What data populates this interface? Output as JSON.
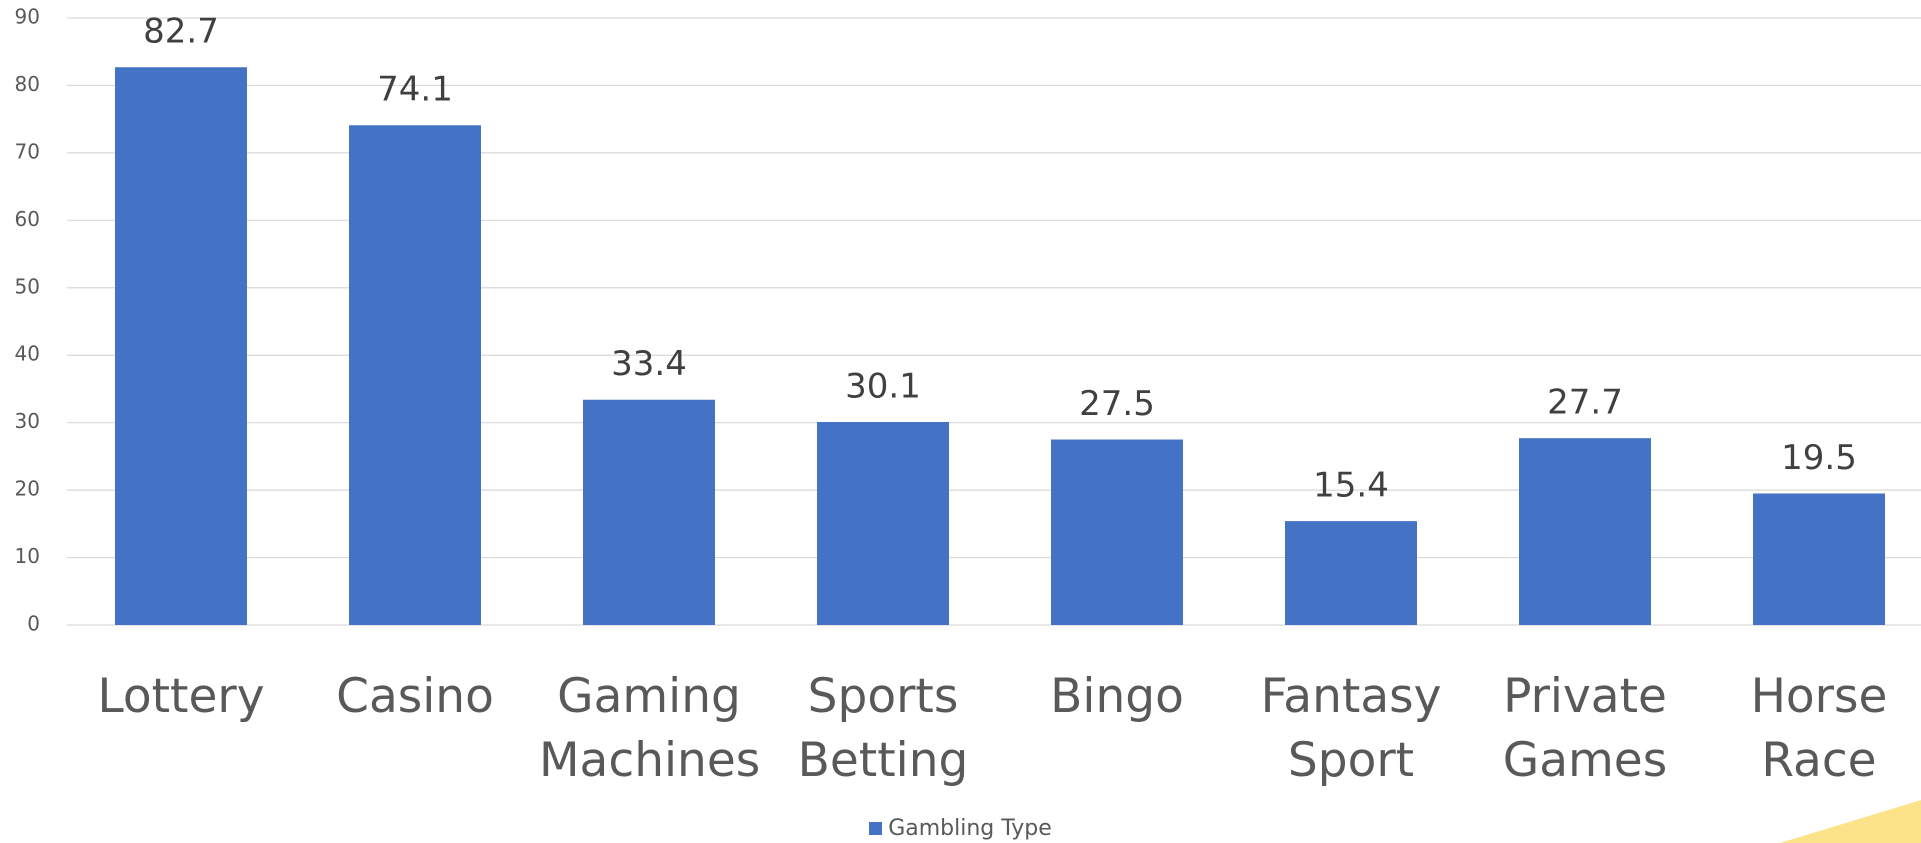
{
  "chart_data": {
    "type": "bar",
    "categories": [
      "Lottery",
      "Casino",
      "Gaming Machines",
      "Sports Betting",
      "Bingo",
      "Fantasy Sport",
      "Private Games",
      "Horse Race"
    ],
    "series": [
      {
        "name": "Gambling Type",
        "color": "#4472c4",
        "values": [
          82.7,
          74.1,
          33.4,
          30.1,
          27.5,
          15.4,
          27.7,
          19.5
        ]
      }
    ],
    "ylim": [
      0,
      90
    ],
    "yticks": [
      0,
      10,
      20,
      30,
      40,
      50,
      60,
      70,
      80,
      90
    ],
    "grid": true,
    "legend": "bottom"
  }
}
